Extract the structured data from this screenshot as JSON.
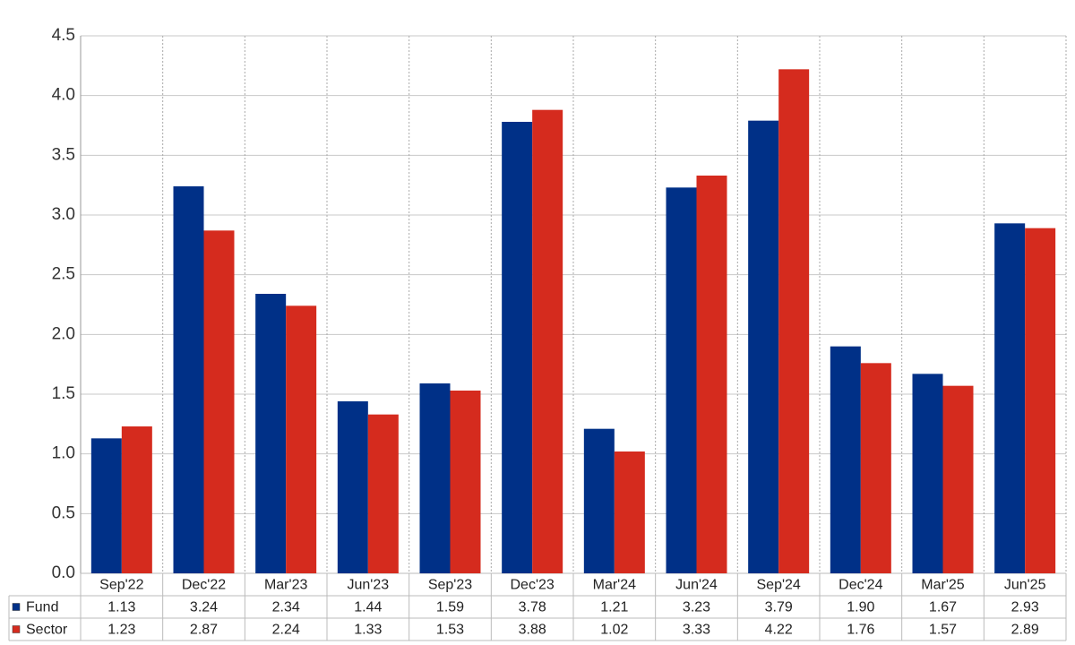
{
  "chart_data": {
    "type": "bar",
    "categories": [
      "Sep'22",
      "Dec'22",
      "Mar'23",
      "Jun'23",
      "Sep'23",
      "Dec'23",
      "Mar'24",
      "Jun'24",
      "Sep'24",
      "Dec'24",
      "Mar'25",
      "Jun'25"
    ],
    "series": [
      {
        "name": "Fund",
        "color": "#003087",
        "values": [
          1.13,
          3.24,
          2.34,
          1.44,
          1.59,
          3.78,
          1.21,
          3.23,
          3.79,
          1.9,
          1.67,
          2.93
        ],
        "value_labels": [
          "1.13",
          "3.24",
          "2.34",
          "1.44",
          "1.59",
          "3.78",
          "1.21",
          "3.23",
          "3.79",
          "1.90",
          "1.67",
          "2.93"
        ]
      },
      {
        "name": "Sector",
        "color": "#d52b1e",
        "values": [
          1.23,
          2.87,
          2.24,
          1.33,
          1.53,
          3.88,
          1.02,
          3.33,
          4.22,
          1.76,
          1.57,
          2.89
        ],
        "value_labels": [
          "1.23",
          "2.87",
          "2.24",
          "1.33",
          "1.53",
          "3.88",
          "1.02",
          "3.33",
          "4.22",
          "1.76",
          "1.57",
          "2.89"
        ]
      }
    ],
    "ylim": [
      0,
      4.5
    ],
    "yticks": [
      {
        "value": 0,
        "label": "0.0"
      },
      0.5,
      {
        "value": 1,
        "label": "1.0"
      },
      1.5,
      {
        "value": 2,
        "label": "2.0"
      },
      2.5,
      {
        "value": 3,
        "label": "3.0"
      },
      3.5,
      {
        "value": 4,
        "label": "4.0"
      },
      4.5
    ],
    "grid": true
  }
}
